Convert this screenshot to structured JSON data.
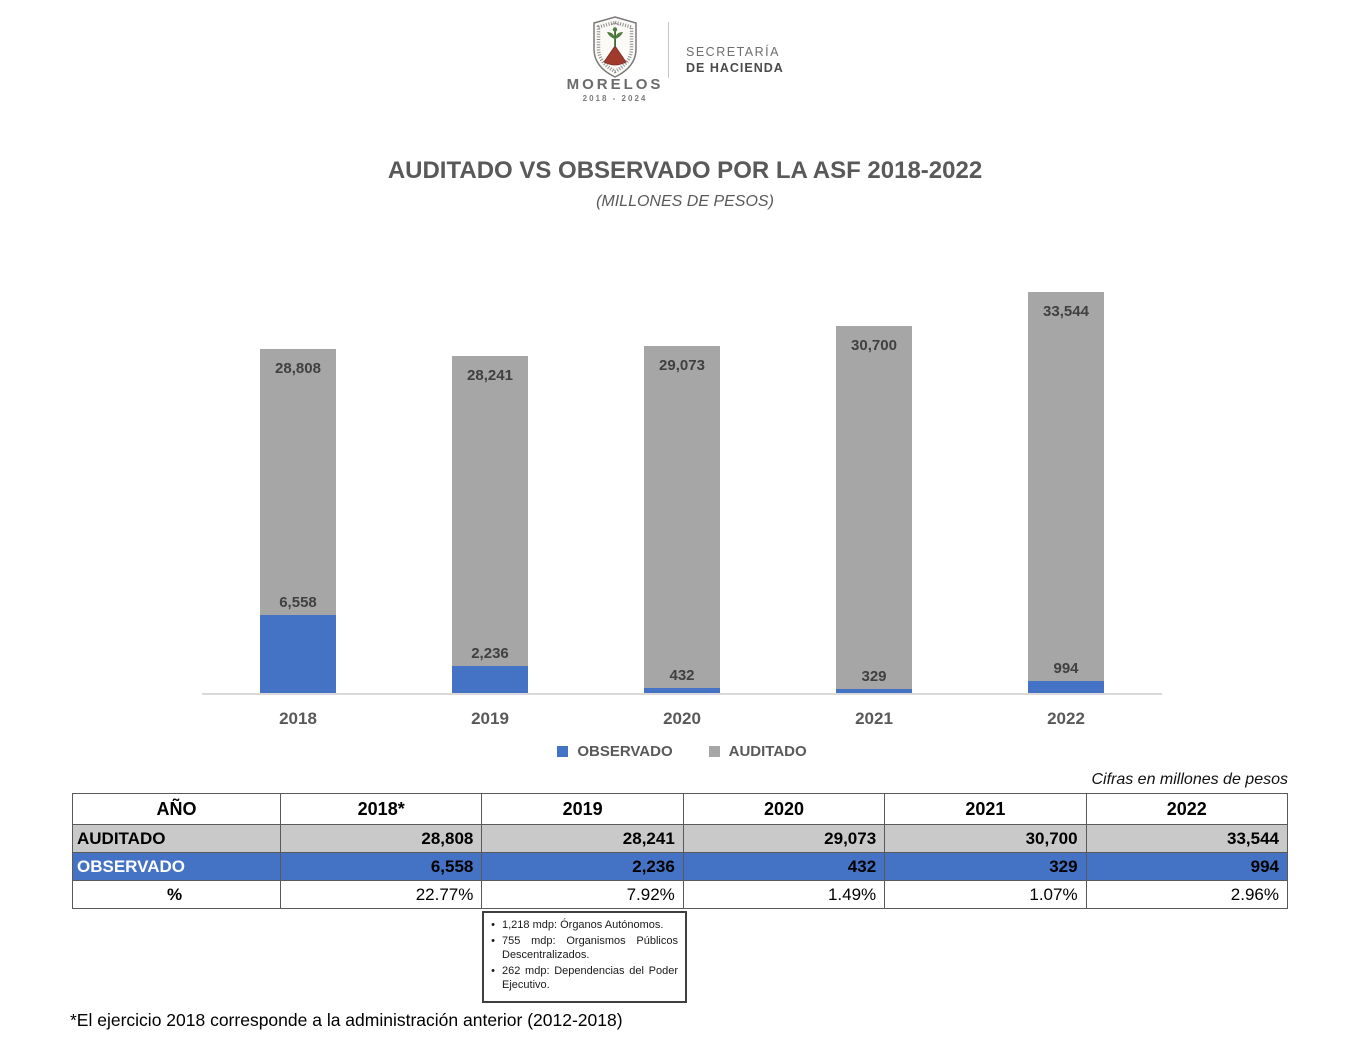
{
  "brand": {
    "state": "MORELOS",
    "period": "2018 - 2024",
    "secretaria_line1": "SECRETARÍA",
    "secretaria_line2": "DE HACIENDA"
  },
  "title": {
    "main": "AUDITADO VS OBSERVADO POR LA ASF 2018-2022",
    "subtitle": "(MILLONES DE PESOS)"
  },
  "chart_data": {
    "type": "bar",
    "subtype": "overlapped-bottom-aligned",
    "title": "AUDITADO VS OBSERVADO POR LA ASF 2018-2022",
    "subtitle": "(MILLONES DE PESOS)",
    "categories": [
      "2018",
      "2019",
      "2020",
      "2021",
      "2022"
    ],
    "series": [
      {
        "name": "OBSERVADO",
        "color": "#4472C4",
        "values": [
          6558,
          2236,
          432,
          329,
          994
        ],
        "labels": [
          "6,558",
          "2,236",
          "432",
          "329",
          "994"
        ]
      },
      {
        "name": "AUDITADO",
        "color": "#A6A6A6",
        "values": [
          28808,
          28241,
          29073,
          30700,
          33544
        ],
        "labels": [
          "28,808",
          "28,241",
          "29,073",
          "30,700",
          "33,544"
        ]
      }
    ],
    "ylim": [
      0,
      35000
    ],
    "grid": false,
    "legend_position": "bottom"
  },
  "table": {
    "caption": "Cifras en millones de pesos",
    "columns": [
      "AÑO",
      "2018*",
      "2019",
      "2020",
      "2021",
      "2022"
    ],
    "rows": [
      {
        "key": "auditado",
        "label": "AUDITADO",
        "values": [
          "28,808",
          "28,241",
          "29,073",
          "30,700",
          "33,544"
        ]
      },
      {
        "key": "observado",
        "label": "OBSERVADO",
        "values": [
          "6,558",
          "2,236",
          "432",
          "329",
          "994"
        ]
      },
      {
        "key": "pct",
        "label": "%",
        "values": [
          "22.77%",
          "7.92%",
          "1.49%",
          "1.07%",
          "2.96%"
        ]
      }
    ]
  },
  "notes": {
    "items": [
      "1,218 mdp: Órganos Autónomos.",
      "755 mdp: Organismos Públicos Descentralizados.",
      "262 mdp: Dependencias del Poder Ejecutivo."
    ]
  },
  "footnote": {
    "text": "*El ejercicio 2018 corresponde a la administración anterior (2012-2018)"
  },
  "colors": {
    "observado_blue": "#4472C4",
    "auditado_gray": "#A6A6A6",
    "table_gray_row": "#C9C9C9",
    "title_gray": "#595959",
    "baseline_gray": "#D9D9D9"
  }
}
